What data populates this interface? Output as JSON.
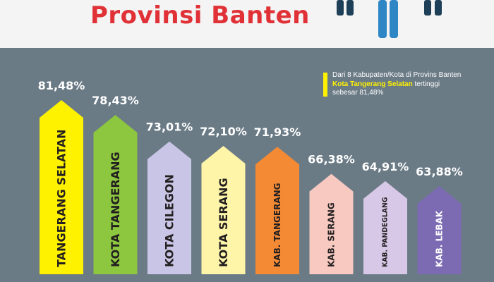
{
  "header": {
    "title": "Provinsi Banten"
  },
  "note": {
    "line1": "Dari 8 Kabupaten/Kota di Provins Banten",
    "highlight": "Kota Tangerang Selatan",
    "line2_rest": " tertinggi",
    "line3_prefix": "sebesar ",
    "line3_value": "81,48%"
  },
  "colors": {
    "background": "#6b7b86",
    "title": "#e03137",
    "accent_yellow": "#fff200",
    "figure_blue": "#2f86c4",
    "figure_navy": "#1e3f58"
  },
  "chart_data": {
    "type": "bar",
    "categories": [
      "TANGERANG SELATAN",
      "KOTA TANGERANG",
      "KOTA CILEGON",
      "KOTA SERANG",
      "KAB. TANGERANG",
      "KAB. SERANG",
      "KAB. PANDEGLANG",
      "KAB. LEBAK"
    ],
    "values": [
      81.48,
      78.43,
      73.01,
      72.1,
      71.93,
      66.38,
      64.91,
      63.88
    ],
    "value_labels": [
      "81,48%",
      "78,43%",
      "73,01%",
      "72,10%",
      "71,93%",
      "66,38%",
      "64,91%",
      "63,88%"
    ],
    "colors": [
      "#fff200",
      "#8dc63f",
      "#c9c5e6",
      "#fff5a8",
      "#f58a34",
      "#f7c9c1",
      "#d6c8e6",
      "#7c6ab3"
    ],
    "label_colors": [
      "#231f20",
      "#231f20",
      "#231f20",
      "#231f20",
      "#231f20",
      "#231f20",
      "#231f20",
      "#ffffff"
    ],
    "title": "",
    "xlabel": "",
    "ylabel": "",
    "ylim": [
      0,
      85
    ]
  }
}
